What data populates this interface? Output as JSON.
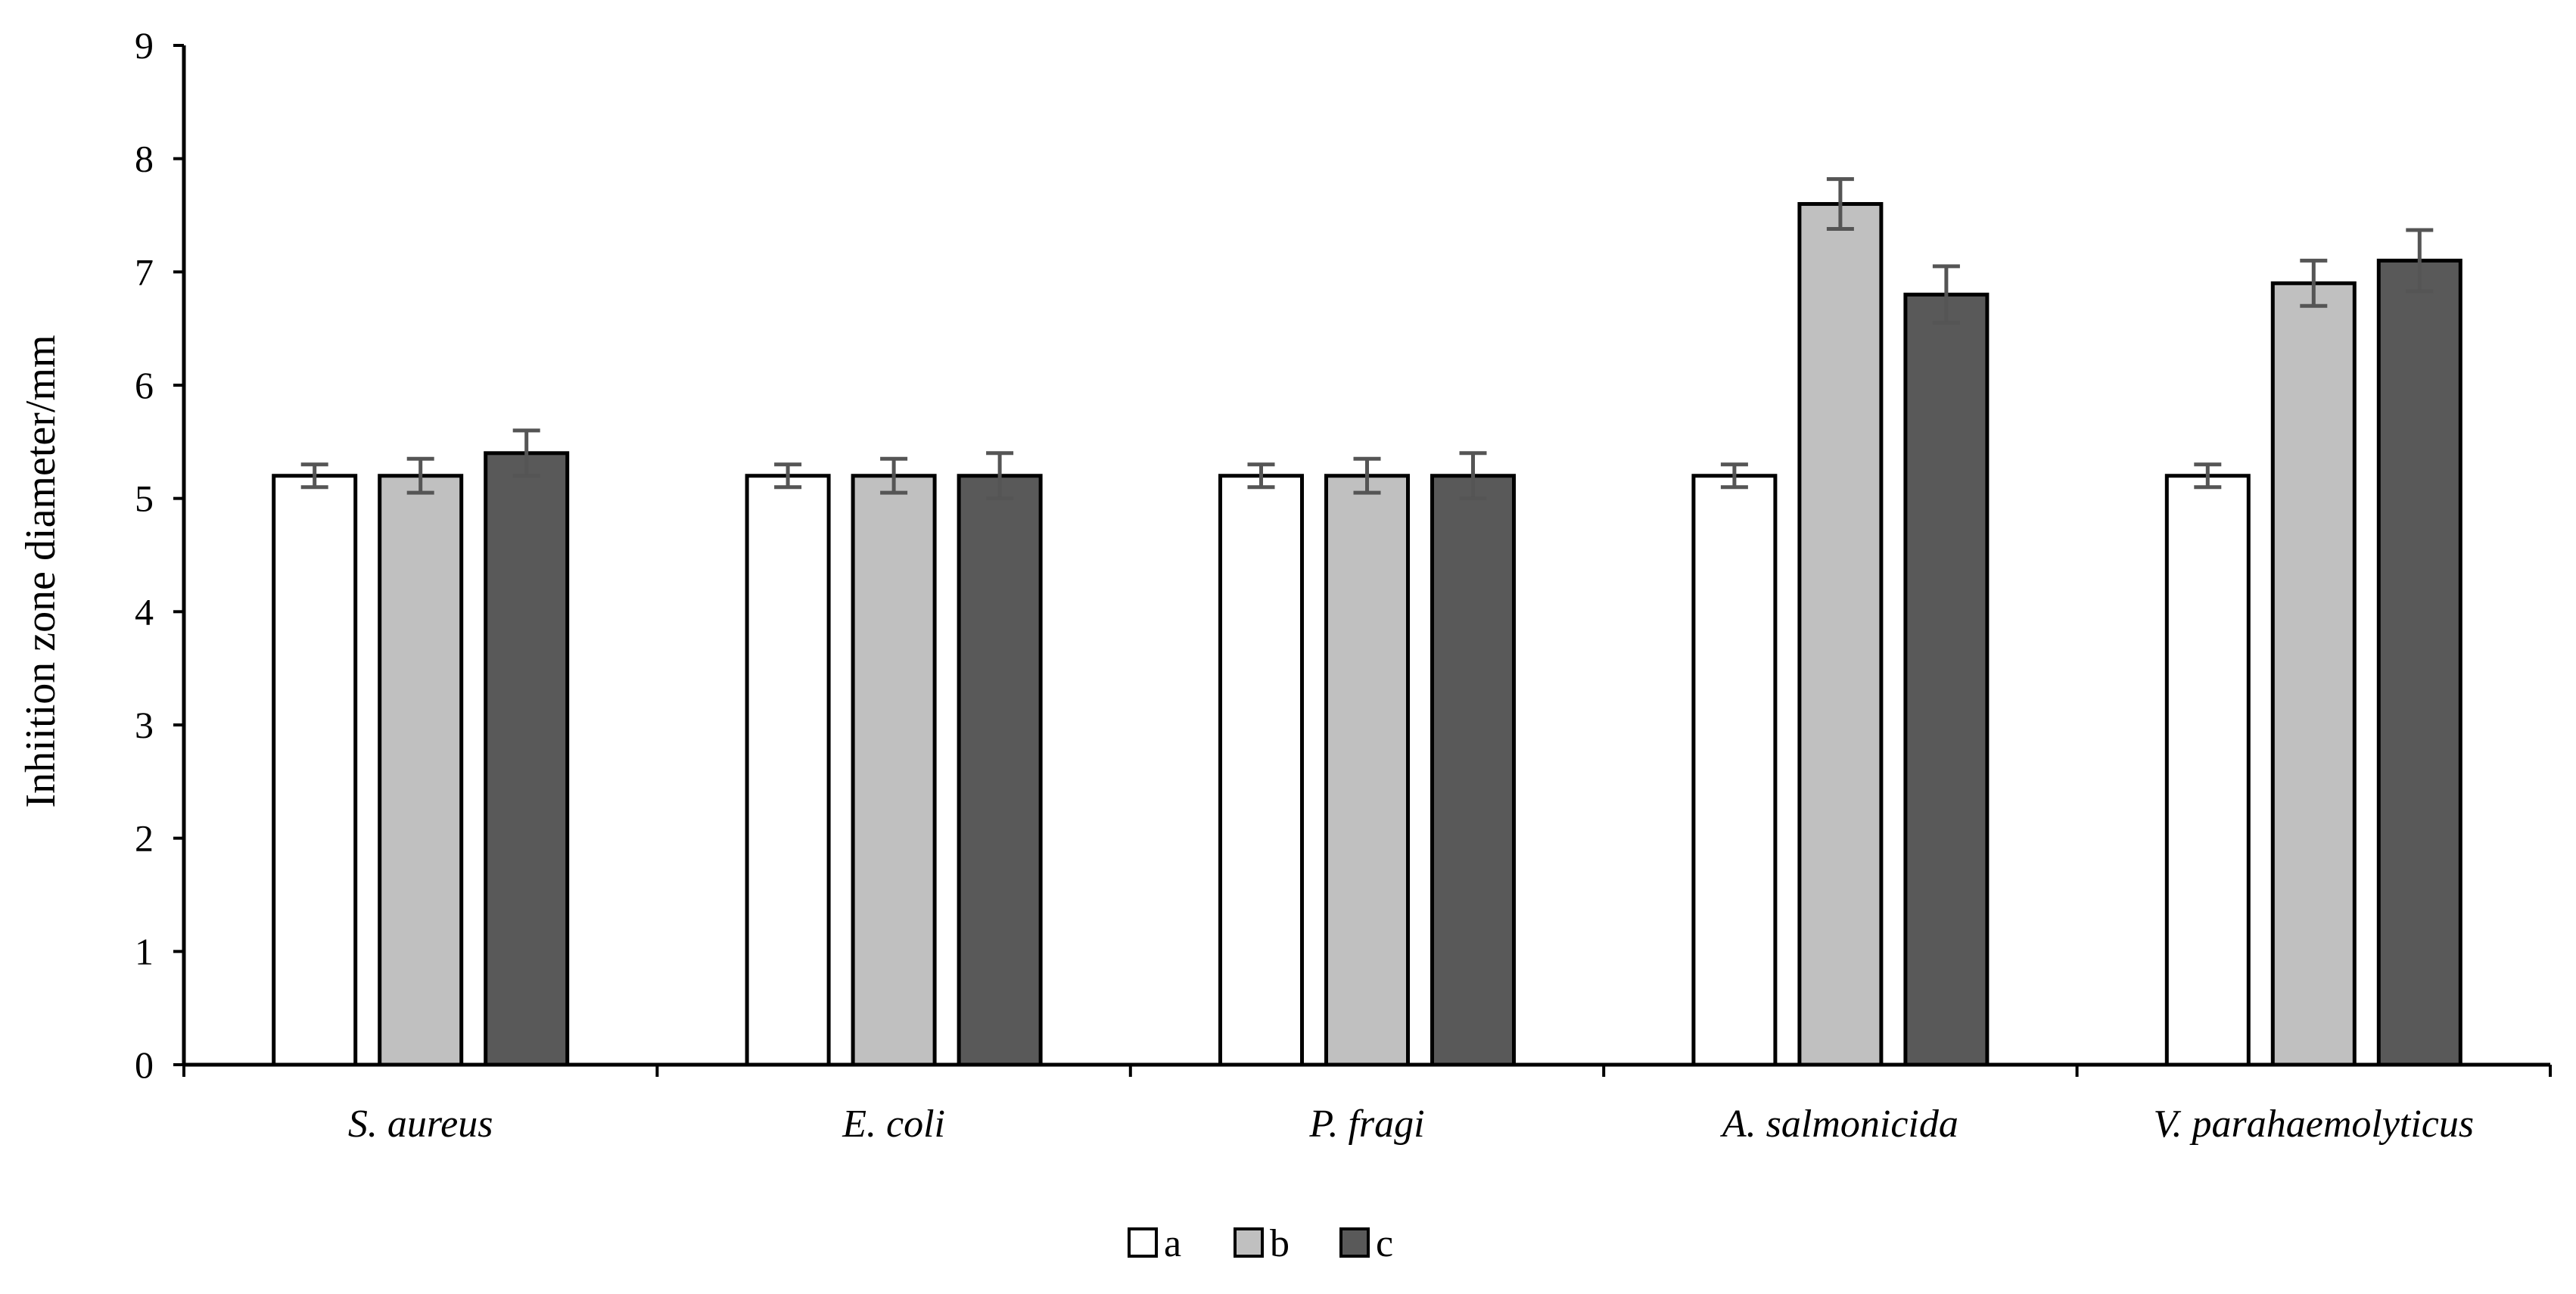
{
  "chart_data": {
    "type": "bar",
    "title": "",
    "xlabel": "",
    "ylabel": "Inhiition zone diameter/mm",
    "ylim": [
      0,
      9
    ],
    "yticks": [
      0,
      1,
      2,
      3,
      4,
      5,
      6,
      7,
      8,
      9
    ],
    "grid": false,
    "legend_position": "bottom-center",
    "categories": [
      "S. aureus",
      "E. coli",
      "P. fragi",
      "A. salmonicida",
      "V. parahaemolyticus"
    ],
    "series": [
      {
        "name": "a",
        "color": "#ffffff",
        "values": [
          5.2,
          5.2,
          5.2,
          5.2,
          5.2
        ],
        "errors": [
          0.1,
          0.1,
          0.1,
          0.1,
          0.1
        ]
      },
      {
        "name": "b",
        "color": "#c0c0c0",
        "values": [
          5.2,
          5.2,
          5.2,
          7.6,
          6.9
        ],
        "errors": [
          0.15,
          0.15,
          0.15,
          0.22,
          0.2
        ]
      },
      {
        "name": "c",
        "color": "#595959",
        "values": [
          5.4,
          5.2,
          5.2,
          6.8,
          7.1
        ],
        "errors": [
          0.2,
          0.2,
          0.2,
          0.25,
          0.27
        ]
      }
    ]
  }
}
